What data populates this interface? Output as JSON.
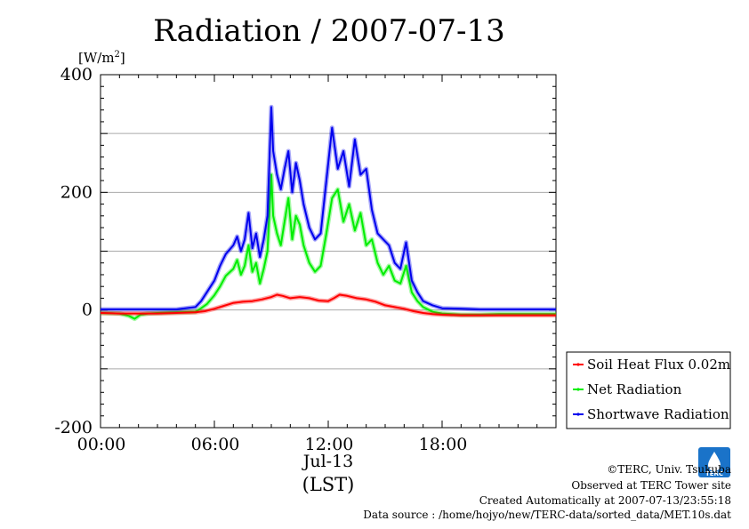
{
  "chart_data": {
    "type": "line",
    "title": "Radiation / 2007-07-13",
    "ylabel": "[W/m²]",
    "ylabel_base": "[W/m",
    "ylabel_sup": "2",
    "ylabel_end": "]",
    "xlabel_date": "Jul-13",
    "xlabel_timezone": "(LST)",
    "xlim": [
      0,
      24
    ],
    "ylim": [
      -200,
      400
    ],
    "x_ticks": [
      {
        "value": 0,
        "label": "00:00"
      },
      {
        "value": 6,
        "label": "06:00"
      },
      {
        "value": 12,
        "label": "12:00"
      },
      {
        "value": 18,
        "label": "18:00"
      }
    ],
    "y_ticks": [
      {
        "value": 400,
        "label": "400"
      },
      {
        "value": 200,
        "label": "200"
      },
      {
        "value": 0,
        "label": "0"
      },
      {
        "value": -200,
        "label": "-200"
      }
    ],
    "grid_y": [
      300,
      200,
      100,
      0,
      -100
    ],
    "grid": true,
    "legend_position": "right-bottom",
    "series": [
      {
        "name": "Soil Heat Flux 0.02m",
        "color": "#ff0000",
        "x": [
          0,
          1,
          2,
          3,
          4,
          5,
          5.5,
          6,
          6.5,
          7,
          7.5,
          8,
          8.5,
          9,
          9.3,
          9.6,
          10,
          10.5,
          11,
          11.5,
          12,
          12.3,
          12.6,
          13,
          13.5,
          14,
          14.5,
          15,
          15.5,
          16,
          16.5,
          17,
          17.5,
          18,
          19,
          20,
          21,
          22,
          23,
          24
        ],
        "values": [
          -5,
          -6,
          -6,
          -6,
          -5,
          -4,
          -2,
          2,
          7,
          12,
          14,
          15,
          18,
          22,
          26,
          24,
          20,
          22,
          20,
          16,
          15,
          20,
          26,
          24,
          20,
          18,
          14,
          8,
          5,
          2,
          -2,
          -5,
          -7,
          -8,
          -9,
          -9,
          -9,
          -9,
          -9,
          -9
        ]
      },
      {
        "name": "Net Radiation",
        "color": "#00ee00",
        "x": [
          0,
          1,
          1.5,
          1.8,
          2.1,
          2.5,
          3,
          4,
          5,
          5.3,
          5.6,
          6,
          6.3,
          6.6,
          7,
          7.2,
          7.4,
          7.6,
          7.8,
          8,
          8.2,
          8.4,
          8.6,
          8.8,
          9,
          9.1,
          9.3,
          9.5,
          9.7,
          9.9,
          10.1,
          10.3,
          10.5,
          10.7,
          11,
          11.3,
          11.6,
          11.9,
          12.2,
          12.5,
          12.8,
          13.1,
          13.4,
          13.7,
          14,
          14.3,
          14.6,
          14.9,
          15.2,
          15.5,
          15.8,
          16.1,
          16.4,
          16.7,
          17,
          17.5,
          18,
          19,
          20,
          21,
          22,
          23,
          24
        ],
        "values": [
          -5,
          -6,
          -10,
          -15,
          -8,
          -6,
          -5,
          -4,
          -3,
          3,
          10,
          25,
          40,
          58,
          70,
          85,
          60,
          75,
          110,
          65,
          80,
          45,
          70,
          100,
          230,
          160,
          130,
          110,
          150,
          190,
          120,
          160,
          145,
          110,
          80,
          65,
          75,
          130,
          190,
          205,
          150,
          180,
          135,
          165,
          110,
          120,
          80,
          60,
          75,
          50,
          45,
          75,
          30,
          15,
          5,
          -3,
          -6,
          -8,
          -8,
          -7,
          -7,
          -7,
          -7
        ]
      },
      {
        "name": "Shortwave Radiation",
        "color": "#0000ee",
        "x": [
          0,
          1,
          2,
          3,
          4,
          5,
          5.3,
          5.6,
          6,
          6.3,
          6.6,
          7,
          7.2,
          7.4,
          7.6,
          7.8,
          8,
          8.2,
          8.4,
          8.6,
          8.8,
          9,
          9.1,
          9.3,
          9.5,
          9.7,
          9.9,
          10.1,
          10.3,
          10.5,
          10.7,
          11,
          11.3,
          11.6,
          11.9,
          12.2,
          12.5,
          12.8,
          13.1,
          13.4,
          13.7,
          14,
          14.3,
          14.6,
          14.9,
          15.2,
          15.5,
          15.8,
          16.1,
          16.4,
          16.7,
          17,
          17.5,
          18,
          19,
          20,
          21,
          22,
          23,
          24
        ],
        "values": [
          1,
          1,
          1,
          1,
          1,
          5,
          15,
          30,
          50,
          75,
          95,
          110,
          125,
          100,
          120,
          165,
          105,
          130,
          90,
          120,
          160,
          345,
          270,
          230,
          205,
          240,
          270,
          200,
          250,
          220,
          180,
          140,
          120,
          130,
          220,
          310,
          240,
          270,
          210,
          290,
          230,
          240,
          170,
          130,
          120,
          110,
          80,
          70,
          115,
          50,
          30,
          15,
          8,
          3,
          2,
          1,
          1,
          1,
          1,
          1
        ]
      }
    ]
  },
  "logo": {
    "text": "TERC"
  },
  "credits": {
    "copyright": "©TERC, Univ. Tsukuba",
    "observed": "Observed at TERC Tower site",
    "created": "Created Automatically at 2007-07-13/23:55:18",
    "source": "Data source : /home/hojyo/new/TERC-data/sorted_data/MET.10s.dat"
  }
}
